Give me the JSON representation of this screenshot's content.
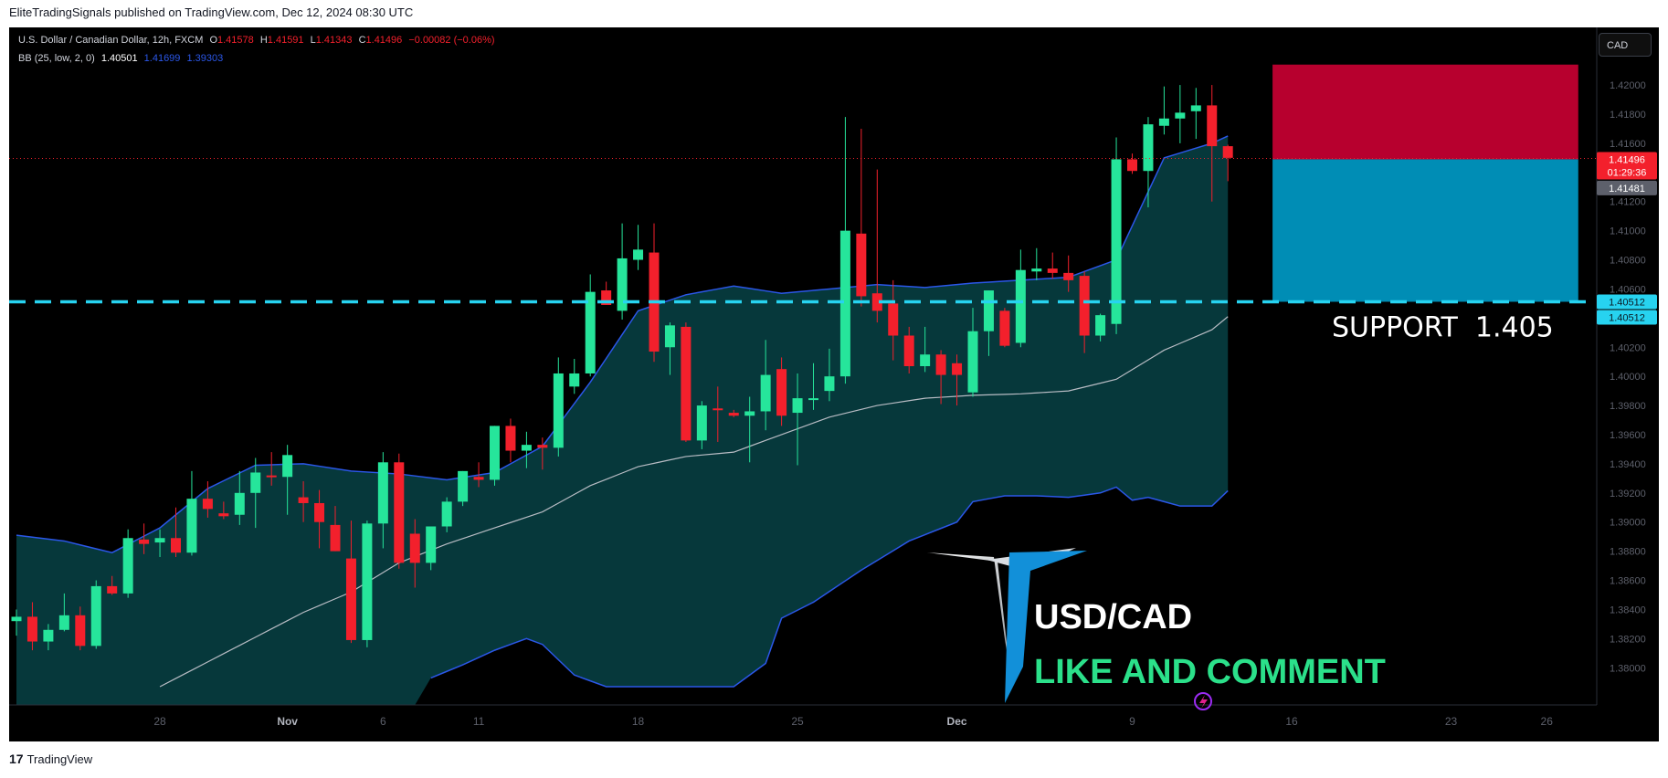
{
  "header": {
    "published_text": "EliteTradingSignals published on TradingView.com, Dec 12, 2024 08:30 UTC"
  },
  "legend": {
    "symbol_line": "U.S. Dollar / Canadian Dollar, 12h, FXCM",
    "o_label": "O",
    "o_value": "1.41578",
    "h_label": "H",
    "h_value": "1.41591",
    "l_label": "L",
    "l_value": "1.41343",
    "c_label": "C",
    "c_value": "1.41496",
    "change": "−0.00082 (−0.06%)",
    "bb_label": "BB (25, low, 2, 0)",
    "bb_basis": "1.40501",
    "bb_upper": "1.41699",
    "bb_lower": "1.39303"
  },
  "currency_button": "CAD",
  "price_tags": {
    "last_price": "1.41496",
    "countdown": "01:29:36",
    "grey_price": "1.41481",
    "support_price_a": "1.40512",
    "support_price_b": "1.40512"
  },
  "annotations": {
    "support_text": "SUPPORT  1.405",
    "pair_text": "USD/CAD",
    "cta_text": "LIKE AND COMMENT"
  },
  "footer": {
    "brand": "TradingView"
  },
  "colors": {
    "background": "#000000",
    "up": "#26e59b",
    "down": "#f3202c",
    "band_fill": "#06383b",
    "band_line": "#2b57e8",
    "basis_line": "#b8bcc4",
    "support_line": "#27d3f0",
    "stop_zone": "#b7002e",
    "target_zone": "#008db5",
    "cta_green": "#2be08a"
  },
  "chart_data": {
    "type": "candlestick",
    "symbol": "USD/CAD",
    "timeframe": "12h",
    "ylim": [
      1.3787,
      1.4227
    ],
    "y_ticks": [
      "1.42000",
      "1.41800",
      "1.41600",
      "1.41400",
      "1.41200",
      "1.41000",
      "1.40800",
      "1.40600",
      "1.40400",
      "1.40200",
      "1.40000",
      "1.39800",
      "1.39600",
      "1.39400",
      "1.39200",
      "1.39000",
      "1.38800",
      "1.38600",
      "1.38400",
      "1.38200",
      "1.38000"
    ],
    "x_ticks": [
      {
        "label": "28",
        "index": 9
      },
      {
        "label": "Nov",
        "index": 17
      },
      {
        "label": "6",
        "index": 23
      },
      {
        "label": "11",
        "index": 29
      },
      {
        "label": "18",
        "index": 39
      },
      {
        "label": "25",
        "index": 49
      },
      {
        "label": "Dec",
        "index": 59
      },
      {
        "label": "9",
        "index": 70
      },
      {
        "label": "16",
        "index": 80
      },
      {
        "label": "23",
        "index": 90
      },
      {
        "label": "26",
        "index": 96
      }
    ],
    "candles": [
      {
        "o": 1.3832,
        "h": 1.384,
        "l": 1.3822,
        "c": 1.3835
      },
      {
        "o": 1.3835,
        "h": 1.3845,
        "l": 1.3812,
        "c": 1.3818
      },
      {
        "o": 1.3818,
        "h": 1.383,
        "l": 1.3812,
        "c": 1.3826
      },
      {
        "o": 1.3826,
        "h": 1.3851,
        "l": 1.3825,
        "c": 1.3836
      },
      {
        "o": 1.3836,
        "h": 1.3842,
        "l": 1.3812,
        "c": 1.3815
      },
      {
        "o": 1.3815,
        "h": 1.386,
        "l": 1.3813,
        "c": 1.3856
      },
      {
        "o": 1.3856,
        "h": 1.3863,
        "l": 1.385,
        "c": 1.3851
      },
      {
        "o": 1.3851,
        "h": 1.3895,
        "l": 1.3848,
        "c": 1.3889
      },
      {
        "o": 1.3888,
        "h": 1.3899,
        "l": 1.3878,
        "c": 1.3885
      },
      {
        "o": 1.3886,
        "h": 1.3895,
        "l": 1.3876,
        "c": 1.3889
      },
      {
        "o": 1.3889,
        "h": 1.391,
        "l": 1.3876,
        "c": 1.3879
      },
      {
        "o": 1.3879,
        "h": 1.3935,
        "l": 1.3877,
        "c": 1.3916
      },
      {
        "o": 1.3916,
        "h": 1.3928,
        "l": 1.3903,
        "c": 1.3909
      },
      {
        "o": 1.3906,
        "h": 1.3914,
        "l": 1.3902,
        "c": 1.3904
      },
      {
        "o": 1.3905,
        "h": 1.3935,
        "l": 1.3898,
        "c": 1.392
      },
      {
        "o": 1.392,
        "h": 1.3944,
        "l": 1.3896,
        "c": 1.3934
      },
      {
        "o": 1.3932,
        "h": 1.3948,
        "l": 1.3925,
        "c": 1.3931
      },
      {
        "o": 1.3931,
        "h": 1.3953,
        "l": 1.3905,
        "c": 1.3946
      },
      {
        "o": 1.3917,
        "h": 1.3928,
        "l": 1.39,
        "c": 1.3913
      },
      {
        "o": 1.3913,
        "h": 1.3922,
        "l": 1.3882,
        "c": 1.39
      },
      {
        "o": 1.3898,
        "h": 1.3911,
        "l": 1.388,
        "c": 1.388
      },
      {
        "o": 1.3875,
        "h": 1.3901,
        "l": 1.3817,
        "c": 1.3819
      },
      {
        "o": 1.3819,
        "h": 1.3901,
        "l": 1.3814,
        "c": 1.3899
      },
      {
        "o": 1.3899,
        "h": 1.3948,
        "l": 1.3882,
        "c": 1.3941
      },
      {
        "o": 1.3941,
        "h": 1.3947,
        "l": 1.3868,
        "c": 1.3872
      },
      {
        "o": 1.3892,
        "h": 1.3902,
        "l": 1.3855,
        "c": 1.3872
      },
      {
        "o": 1.3872,
        "h": 1.3894,
        "l": 1.3867,
        "c": 1.3897
      },
      {
        "o": 1.3897,
        "h": 1.3917,
        "l": 1.3893,
        "c": 1.3914
      },
      {
        "o": 1.3914,
        "h": 1.3935,
        "l": 1.3911,
        "c": 1.3935
      },
      {
        "o": 1.3931,
        "h": 1.3941,
        "l": 1.3924,
        "c": 1.3929
      },
      {
        "o": 1.3929,
        "h": 1.3966,
        "l": 1.3925,
        "c": 1.3966
      },
      {
        "o": 1.3966,
        "h": 1.3971,
        "l": 1.3941,
        "c": 1.3949
      },
      {
        "o": 1.3949,
        "h": 1.3962,
        "l": 1.3937,
        "c": 1.3953
      },
      {
        "o": 1.3953,
        "h": 1.3958,
        "l": 1.3936,
        "c": 1.3951
      },
      {
        "o": 1.3951,
        "h": 1.4013,
        "l": 1.3945,
        "c": 1.4002
      },
      {
        "o": 1.3993,
        "h": 1.4012,
        "l": 1.3988,
        "c": 1.4002
      },
      {
        "o": 1.4002,
        "h": 1.407,
        "l": 1.4,
        "c": 1.4058
      },
      {
        "o": 1.4059,
        "h": 1.4065,
        "l": 1.4049,
        "c": 1.4049
      },
      {
        "o": 1.4045,
        "h": 1.4105,
        "l": 1.4039,
        "c": 1.4081
      },
      {
        "o": 1.408,
        "h": 1.4104,
        "l": 1.4073,
        "c": 1.4087
      },
      {
        "o": 1.4085,
        "h": 1.4105,
        "l": 1.401,
        "c": 1.4017
      },
      {
        "o": 1.402,
        "h": 1.4037,
        "l": 1.4001,
        "c": 1.4035
      },
      {
        "o": 1.4034,
        "h": 1.4037,
        "l": 1.3955,
        "c": 1.3956
      },
      {
        "o": 1.3956,
        "h": 1.3983,
        "l": 1.395,
        "c": 1.398
      },
      {
        "o": 1.3978,
        "h": 1.3993,
        "l": 1.3955,
        "c": 1.3977
      },
      {
        "o": 1.3975,
        "h": 1.3977,
        "l": 1.3972,
        "c": 1.3973
      },
      {
        "o": 1.3973,
        "h": 1.3986,
        "l": 1.3941,
        "c": 1.3976
      },
      {
        "o": 1.3976,
        "h": 1.4025,
        "l": 1.3963,
        "c": 1.4001
      },
      {
        "o": 1.4005,
        "h": 1.4013,
        "l": 1.3966,
        "c": 1.3973
      },
      {
        "o": 1.3975,
        "h": 1.4002,
        "l": 1.3939,
        "c": 1.3985
      },
      {
        "o": 1.3985,
        "h": 1.4009,
        "l": 1.3977,
        "c": 1.3985
      },
      {
        "o": 1.399,
        "h": 1.4019,
        "l": 1.3983,
        "c": 1.4
      },
      {
        "o": 1.4,
        "h": 1.4178,
        "l": 1.3995,
        "c": 1.41
      },
      {
        "o": 1.4098,
        "h": 1.417,
        "l": 1.4048,
        "c": 1.4055
      },
      {
        "o": 1.4057,
        "h": 1.4142,
        "l": 1.4037,
        "c": 1.4045
      },
      {
        "o": 1.405,
        "h": 1.4066,
        "l": 1.4011,
        "c": 1.4028
      },
      {
        "o": 1.4028,
        "h": 1.4034,
        "l": 1.4002,
        "c": 1.4007
      },
      {
        "o": 1.4007,
        "h": 1.4034,
        "l": 1.4003,
        "c": 1.4015
      },
      {
        "o": 1.4015,
        "h": 1.4018,
        "l": 1.3981,
        "c": 1.4001
      },
      {
        "o": 1.4009,
        "h": 1.4015,
        "l": 1.398,
        "c": 1.4001
      },
      {
        "o": 1.3989,
        "h": 1.4047,
        "l": 1.3986,
        "c": 1.4031
      },
      {
        "o": 1.4031,
        "h": 1.4059,
        "l": 1.4014,
        "c": 1.4059
      },
      {
        "o": 1.4045,
        "h": 1.4047,
        "l": 1.402,
        "c": 1.4021
      },
      {
        "o": 1.4023,
        "h": 1.4087,
        "l": 1.402,
        "c": 1.4073
      },
      {
        "o": 1.4072,
        "h": 1.4088,
        "l": 1.4066,
        "c": 1.4074
      },
      {
        "o": 1.4074,
        "h": 1.4085,
        "l": 1.4067,
        "c": 1.4071
      },
      {
        "o": 1.4071,
        "h": 1.4083,
        "l": 1.4058,
        "c": 1.4066
      },
      {
        "o": 1.4069,
        "h": 1.4072,
        "l": 1.4016,
        "c": 1.4028
      },
      {
        "o": 1.4028,
        "h": 1.4043,
        "l": 1.4024,
        "c": 1.4042
      },
      {
        "o": 1.4036,
        "h": 1.4164,
        "l": 1.4029,
        "c": 1.4149
      },
      {
        "o": 1.4149,
        "h": 1.4153,
        "l": 1.4139,
        "c": 1.4141
      },
      {
        "o": 1.4141,
        "h": 1.4178,
        "l": 1.4116,
        "c": 1.4173
      },
      {
        "o": 1.4172,
        "h": 1.4199,
        "l": 1.4166,
        "c": 1.4177
      },
      {
        "o": 1.4177,
        "h": 1.42,
        "l": 1.416,
        "c": 1.4181
      },
      {
        "o": 1.4182,
        "h": 1.4198,
        "l": 1.4163,
        "c": 1.4186
      },
      {
        "o": 1.4186,
        "h": 1.42,
        "l": 1.412,
        "c": 1.4158
      },
      {
        "o": 1.4158,
        "h": 1.4159,
        "l": 1.4134,
        "c": 1.415
      }
    ],
    "bollinger": {
      "upper_points": [
        [
          0,
          1.3891
        ],
        [
          3,
          1.3887
        ],
        [
          6,
          1.3879
        ],
        [
          9,
          1.3896
        ],
        [
          12,
          1.3923
        ],
        [
          15,
          1.3939
        ],
        [
          18,
          1.394
        ],
        [
          21,
          1.3935
        ],
        [
          24,
          1.3933
        ],
        [
          27,
          1.3929
        ],
        [
          30,
          1.3934
        ],
        [
          33,
          1.3952
        ],
        [
          36,
          1.3996
        ],
        [
          39,
          1.4045
        ],
        [
          42,
          1.4056
        ],
        [
          45,
          1.4062
        ],
        [
          48,
          1.4057
        ],
        [
          51,
          1.406
        ],
        [
          54,
          1.4063
        ],
        [
          57,
          1.4061
        ],
        [
          60,
          1.4064
        ],
        [
          63,
          1.4066
        ],
        [
          66,
          1.4068
        ],
        [
          69,
          1.408
        ],
        [
          72,
          1.415
        ],
        [
          75,
          1.416
        ],
        [
          77,
          1.417
        ]
      ],
      "basis_points": [
        [
          9,
          1.3787
        ],
        [
          12,
          1.3804
        ],
        [
          15,
          1.3821
        ],
        [
          18,
          1.3838
        ],
        [
          21,
          1.3852
        ],
        [
          24,
          1.3872
        ],
        [
          27,
          1.3885
        ],
        [
          30,
          1.3896
        ],
        [
          33,
          1.3907
        ],
        [
          36,
          1.3925
        ],
        [
          39,
          1.3938
        ],
        [
          42,
          1.3945
        ],
        [
          45,
          1.3948
        ],
        [
          48,
          1.396
        ],
        [
          51,
          1.3972
        ],
        [
          54,
          1.398
        ],
        [
          57,
          1.3985
        ],
        [
          60,
          1.3987
        ],
        [
          63,
          1.3988
        ],
        [
          66,
          1.399
        ],
        [
          69,
          1.3998
        ],
        [
          72,
          1.4018
        ],
        [
          75,
          1.4032
        ],
        [
          77,
          1.405
        ]
      ],
      "lower_points": [
        [
          26,
          1.3793
        ],
        [
          28,
          1.3802
        ],
        [
          30,
          1.3812
        ],
        [
          32,
          1.382
        ],
        [
          33,
          1.3816
        ],
        [
          35,
          1.3795
        ],
        [
          37,
          1.3787
        ],
        [
          45,
          1.3787
        ],
        [
          47,
          1.3803
        ],
        [
          48,
          1.3834
        ],
        [
          50,
          1.3845
        ],
        [
          53,
          1.3867
        ],
        [
          56,
          1.3887
        ],
        [
          59,
          1.39
        ],
        [
          60,
          1.3914
        ],
        [
          62,
          1.3918
        ],
        [
          64,
          1.3918
        ],
        [
          66,
          1.3917
        ],
        [
          68,
          1.392
        ],
        [
          69,
          1.3924
        ],
        [
          70,
          1.3915
        ],
        [
          71,
          1.3917
        ],
        [
          73,
          1.3911
        ],
        [
          75,
          1.3911
        ],
        [
          77,
          1.3932
        ]
      ],
      "basis_value": 1.40501,
      "upper_value": 1.41699,
      "lower_value": 1.39303
    },
    "support_level": 1.40512,
    "last_price": 1.41496,
    "position": {
      "type": "short",
      "entry": 1.4149,
      "stop": 1.4214,
      "target": 1.40512,
      "start_index": 78,
      "end_index": 95
    }
  }
}
